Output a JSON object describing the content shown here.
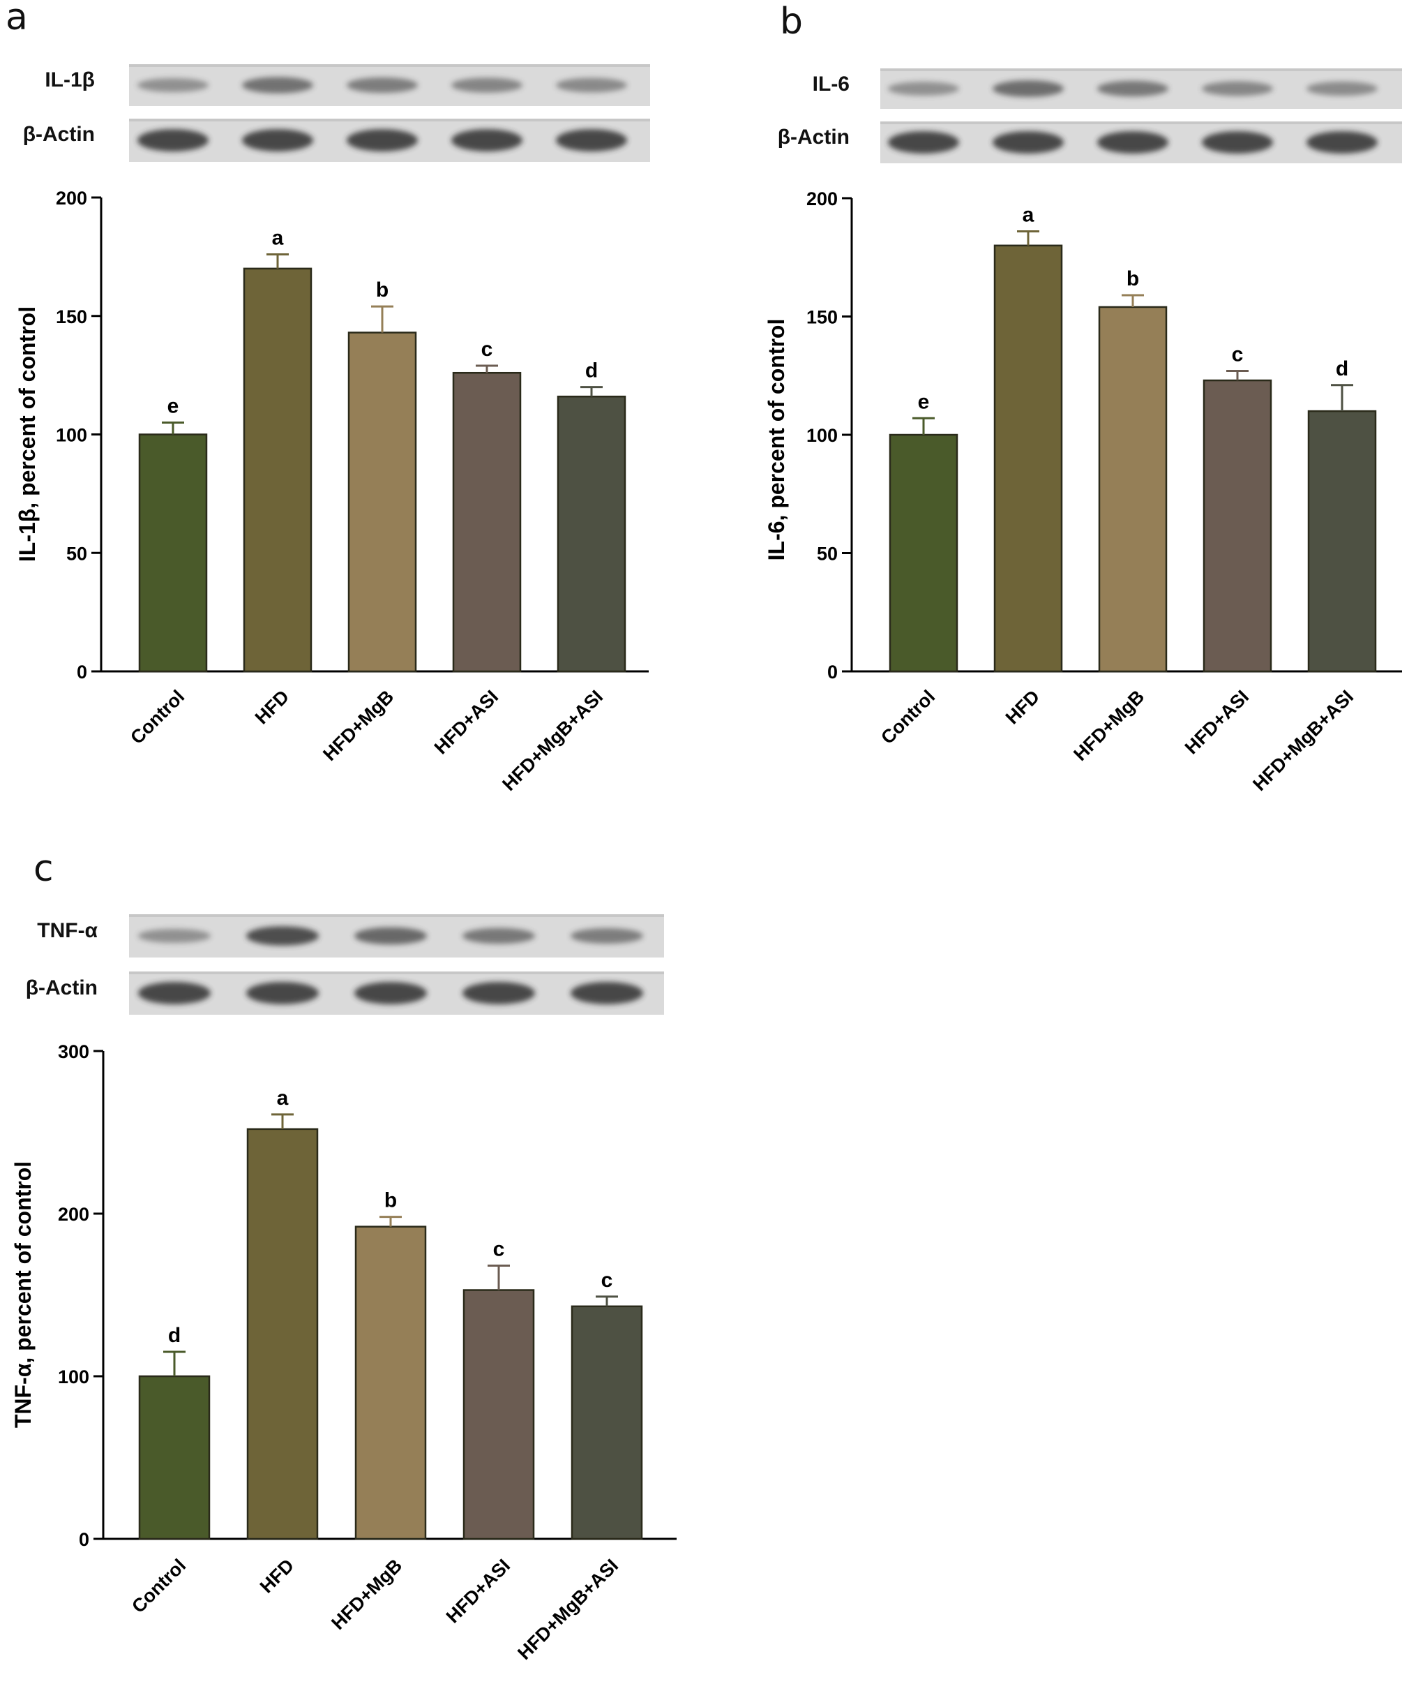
{
  "chart_data": [
    {
      "panel": "a",
      "type": "bar",
      "blot_labels": [
        "IL-1β",
        "β-Actin"
      ],
      "ylabel": "IL-1β, percent of control",
      "ylim": [
        0,
        200
      ],
      "yticks": [
        0,
        50,
        100,
        150,
        200
      ],
      "categories": [
        "Control",
        "HFD",
        "HFD+MgB",
        "HFD+ASI",
        "HFD+MgB+ASI"
      ],
      "values": [
        100,
        170,
        143,
        126,
        116
      ],
      "errors": [
        5,
        6,
        11,
        3,
        4
      ],
      "significance": [
        "e",
        "a",
        "b",
        "c",
        "d"
      ],
      "colors": [
        "#4a5a2a",
        "#6e6438",
        "#957f57",
        "#6b5c52",
        "#4e5143"
      ]
    },
    {
      "panel": "b",
      "type": "bar",
      "blot_labels": [
        "IL-6",
        "β-Actin"
      ],
      "ylabel": "IL-6, percent of control",
      "ylim": [
        0,
        200
      ],
      "yticks": [
        0,
        50,
        100,
        150,
        200
      ],
      "categories": [
        "Control",
        "HFD",
        "HFD+MgB",
        "HFD+ASI",
        "HFD+MgB+ASI"
      ],
      "values": [
        100,
        180,
        154,
        123,
        110
      ],
      "errors": [
        7,
        6,
        5,
        4,
        11
      ],
      "significance": [
        "e",
        "a",
        "b",
        "c",
        "d"
      ],
      "colors": [
        "#4a5a2a",
        "#6e6438",
        "#957f57",
        "#6b5c52",
        "#4e5143"
      ]
    },
    {
      "panel": "c",
      "type": "bar",
      "blot_labels": [
        "TNF-α",
        "β-Actin"
      ],
      "ylabel": "TNF-α, percent of control",
      "ylim": [
        0,
        300
      ],
      "yticks": [
        0,
        100,
        200,
        300
      ],
      "categories": [
        "Control",
        "HFD",
        "HFD+MgB",
        "HFD+ASI",
        "HFD+MgB+ASI"
      ],
      "values": [
        100,
        252,
        192,
        153,
        143
      ],
      "errors": [
        15,
        9,
        6,
        15,
        6
      ],
      "significance": [
        "d",
        "a",
        "b",
        "c",
        "c"
      ],
      "colors": [
        "#4a5a2a",
        "#6e6438",
        "#957f57",
        "#6b5c52",
        "#4e5143"
      ]
    }
  ]
}
